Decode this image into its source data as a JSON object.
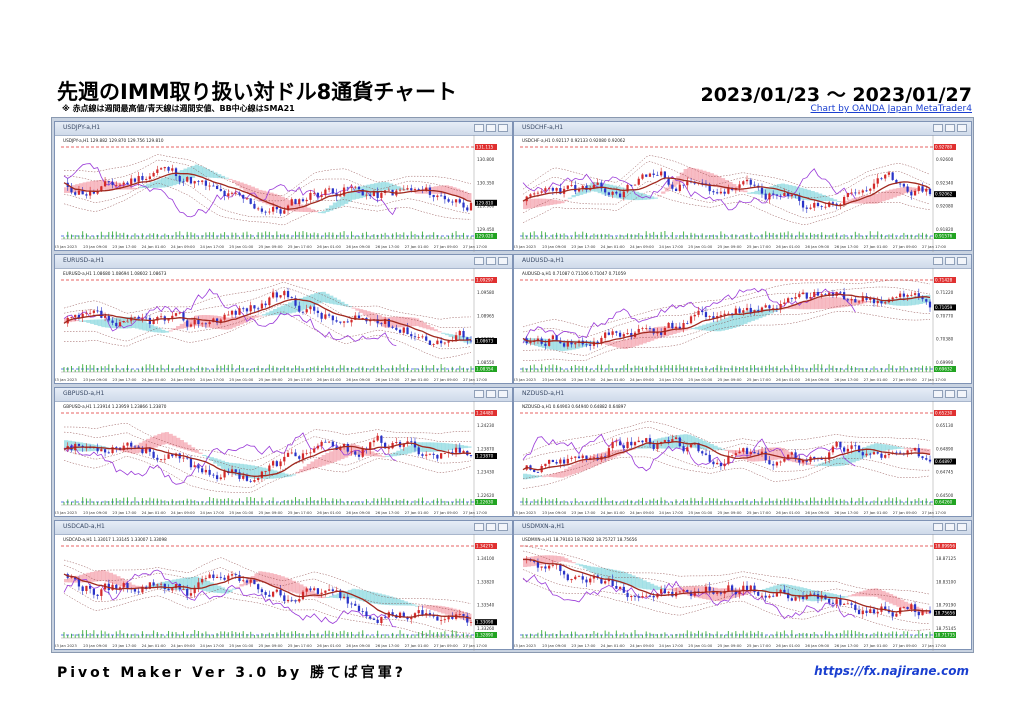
{
  "header": {
    "title": "先週のIMM取り扱い対ドル8通貨チャート",
    "subnote": "※ 赤点線は週間最高値/青天線は週間安値、BB中心線はSMA21",
    "date_range": "2023/01/23 ～ 2023/01/27",
    "credit": "Chart by OANDA Japan MetaTrader4"
  },
  "charts": [
    {
      "id": "usdjpy",
      "window_title": "USDJPY-a,H1",
      "info": "USDJPY-a,H1 129.882 129.870 129.756 129.810",
      "high_label": "131.115",
      "low_label": "129.020",
      "current_label": "129.810",
      "price_ticks": [
        "130.800",
        "130.350",
        "129.900",
        "129.450"
      ],
      "seed": 11,
      "trend": [
        0.55,
        0.5,
        0.6,
        0.75,
        0.65,
        0.45,
        0.35,
        0.3,
        0.5,
        0.55,
        0.45,
        0.5,
        0.45,
        0.4
      ]
    },
    {
      "id": "usdchf",
      "window_title": "USDCHF-a,H1",
      "info": "USDCHF-a,H1 0.92117 0.92133 0.92080 0.92062",
      "high_label": "0.92789",
      "low_label": "0.91576",
      "current_label": "0.92062",
      "price_ticks": [
        "0.92600",
        "0.92340",
        "0.92080",
        "0.91820"
      ],
      "seed": 23,
      "trend": [
        0.35,
        0.55,
        0.5,
        0.45,
        0.7,
        0.6,
        0.5,
        0.55,
        0.45,
        0.35,
        0.4,
        0.55,
        0.6,
        0.5
      ]
    },
    {
      "id": "eurusd",
      "window_title": "EURUSD-a,H1",
      "info": "EURUSD-a,H1 1.08680 1.08694 1.08602 1.08673",
      "high_label": "1.09297",
      "low_label": "1.08354",
      "current_label": "1.08673",
      "price_ticks": [
        "1.09580",
        "1.08965",
        "1.08760",
        "1.08550"
      ],
      "seed": 37,
      "trend": [
        0.5,
        0.55,
        0.45,
        0.55,
        0.5,
        0.6,
        0.7,
        0.8,
        0.65,
        0.5,
        0.55,
        0.45,
        0.35,
        0.4
      ]
    },
    {
      "id": "audusd",
      "window_title": "AUDUSD-a,H1",
      "info": "AUDUSD-a,H1 0.71087 0.71106 0.71047 0.71059",
      "high_label": "0.71428",
      "low_label": "0.69632",
      "current_label": "0.71059",
      "price_ticks": [
        "0.71220",
        "0.70770",
        "0.70380",
        "0.69990"
      ],
      "seed": 41,
      "trend": [
        0.3,
        0.35,
        0.3,
        0.4,
        0.45,
        0.5,
        0.6,
        0.65,
        0.7,
        0.75,
        0.8,
        0.78,
        0.77,
        0.75
      ]
    },
    {
      "id": "gbpusd",
      "window_title": "GBPUSD-a,H1",
      "info": "GBPUSD-a,H1 1.23914 1.23959 1.23866 1.23870",
      "high_label": "1.24480",
      "low_label": "1.22630",
      "current_label": "1.23870",
      "price_ticks": [
        "1.24230",
        "1.23870",
        "1.23430",
        "1.22620"
      ],
      "seed": 53,
      "trend": [
        0.65,
        0.6,
        0.7,
        0.55,
        0.4,
        0.35,
        0.3,
        0.45,
        0.6,
        0.55,
        0.65,
        0.6,
        0.55,
        0.6
      ]
    },
    {
      "id": "nzdusd",
      "window_title": "NZDUSD-a,H1",
      "info": "NZDUSD-a,H1 0.64903 0.64940 0.64882 0.64897",
      "high_label": "0.65230",
      "low_label": "0.64260",
      "current_label": "0.64897",
      "price_ticks": [
        "0.65130",
        "0.64890",
        "0.64745",
        "0.64500"
      ],
      "seed": 67,
      "trend": [
        0.35,
        0.45,
        0.55,
        0.65,
        0.7,
        0.6,
        0.5,
        0.55,
        0.45,
        0.5,
        0.6,
        0.55,
        0.5,
        0.5
      ]
    },
    {
      "id": "usdcad",
      "window_title": "USDCAD-a,H1",
      "info": "USDCAD-a,H1 1.33017 1.33145 1.33007 1.33098",
      "high_label": "1.34275",
      "low_label": "1.32890",
      "current_label": "1.33098",
      "price_ticks": [
        "1.34100",
        "1.33820",
        "1.33540",
        "1.33260"
      ],
      "seed": 79,
      "trend": [
        0.65,
        0.5,
        0.55,
        0.6,
        0.5,
        0.65,
        0.55,
        0.45,
        0.5,
        0.4,
        0.3,
        0.25,
        0.2,
        0.18
      ]
    },
    {
      "id": "usdmxn",
      "window_title": "USDMXN-a,H1",
      "info": "USDMXN-a,H1 18.79103 18.79282 18.75727 18.75656",
      "high_label": "18.89956",
      "low_label": "18.71735",
      "current_label": "18.75656",
      "price_ticks": [
        "18.87125",
        "18.83100",
        "18.79190",
        "18.75145"
      ],
      "seed": 97,
      "trend": [
        0.8,
        0.7,
        0.65,
        0.55,
        0.5,
        0.45,
        0.5,
        0.55,
        0.45,
        0.4,
        0.45,
        0.35,
        0.3,
        0.28
      ]
    }
  ],
  "time_axis": [
    "23 Jan 2023",
    "23 Jan 09:00",
    "23 Jan 17:00",
    "24 Jan 01:00",
    "24 Jan 09:00",
    "24 Jan 17:00",
    "25 Jan 01:00",
    "25 Jan 09:00",
    "25 Jan 17:00",
    "26 Jan 01:00",
    "26 Jan 09:00",
    "26 Jan 17:00",
    "27 Jan 01:00",
    "27 Jan 09:00",
    "27 Jan 17:00"
  ],
  "footer": {
    "left": "Pivot  Maker  Ver  3.0  by  勝てば官軍?",
    "right": "https://fx.najirane.com"
  },
  "colors": {
    "bull": "#d42a2a",
    "bear": "#2a34c8",
    "ma": "#a0281e",
    "bb": "#7a2a2a",
    "chikou": "#9a3ad8",
    "cloud_bull": "#f4a5b0",
    "cloud_bear": "#8fd9e0",
    "volume": "#22a422",
    "high_line": "#e03030",
    "low_line": "#3050e0"
  }
}
